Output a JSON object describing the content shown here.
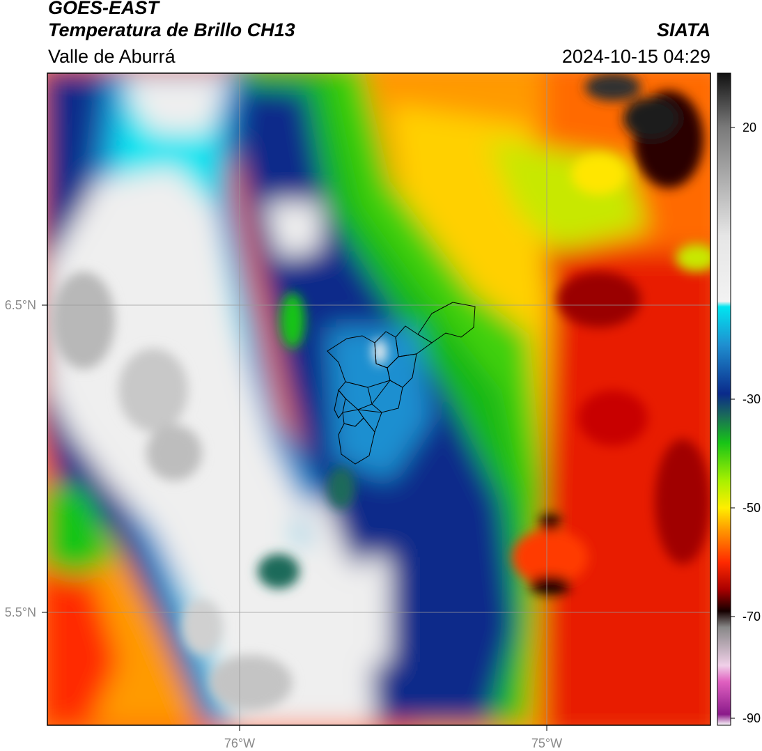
{
  "header": {
    "satellite": "GOES-EAST",
    "product": "Temperatura de Brillo CH13",
    "region": "Valle de Aburrá",
    "organization": "SIATA",
    "timestamp": "2024-10-15 04:29"
  },
  "map": {
    "lon_ticks": [
      {
        "value": -76,
        "label": "76°W"
      },
      {
        "value": -75,
        "label": "75°W"
      }
    ],
    "lat_ticks": [
      {
        "value": 6.5,
        "label": "6.5°N"
      },
      {
        "value": 5.5,
        "label": "5.5°N"
      }
    ],
    "gridlines": true,
    "overlay": "Valle de Aburrá municipal boundaries"
  },
  "colorbar": {
    "range": [
      -90,
      30
    ],
    "ticks": [
      {
        "value": 20,
        "label": "20"
      },
      {
        "value": -30,
        "label": "-30"
      },
      {
        "value": -50,
        "label": "-50"
      },
      {
        "value": -70,
        "label": "-70"
      },
      {
        "value": -90,
        "label": "-90"
      }
    ],
    "stops": [
      {
        "v": 30,
        "c": "#111111"
      },
      {
        "v": 20,
        "c": "#7a7a7a"
      },
      {
        "v": 0,
        "c": "#e6e6e6"
      },
      {
        "v": -12,
        "c": "#f2f2f2"
      },
      {
        "v": -13,
        "c": "#00e5f0"
      },
      {
        "v": -20,
        "c": "#1f8fd0"
      },
      {
        "v": -29,
        "c": "#0a2a8a"
      },
      {
        "v": -33,
        "c": "#1a6a5a"
      },
      {
        "v": -38,
        "c": "#17c417"
      },
      {
        "v": -45,
        "c": "#a8f000"
      },
      {
        "v": -50,
        "c": "#ffee00"
      },
      {
        "v": -54,
        "c": "#ff9a00"
      },
      {
        "v": -60,
        "c": "#ff2a00"
      },
      {
        "v": -65,
        "c": "#aa0000"
      },
      {
        "v": -69,
        "c": "#150000"
      },
      {
        "v": -72,
        "c": "#888888"
      },
      {
        "v": -79,
        "c": "#f0d0e8"
      },
      {
        "v": -82,
        "c": "#e060c0"
      },
      {
        "v": -88,
        "c": "#8a1a8a"
      },
      {
        "v": -90,
        "c": "#ffffff"
      }
    ]
  }
}
